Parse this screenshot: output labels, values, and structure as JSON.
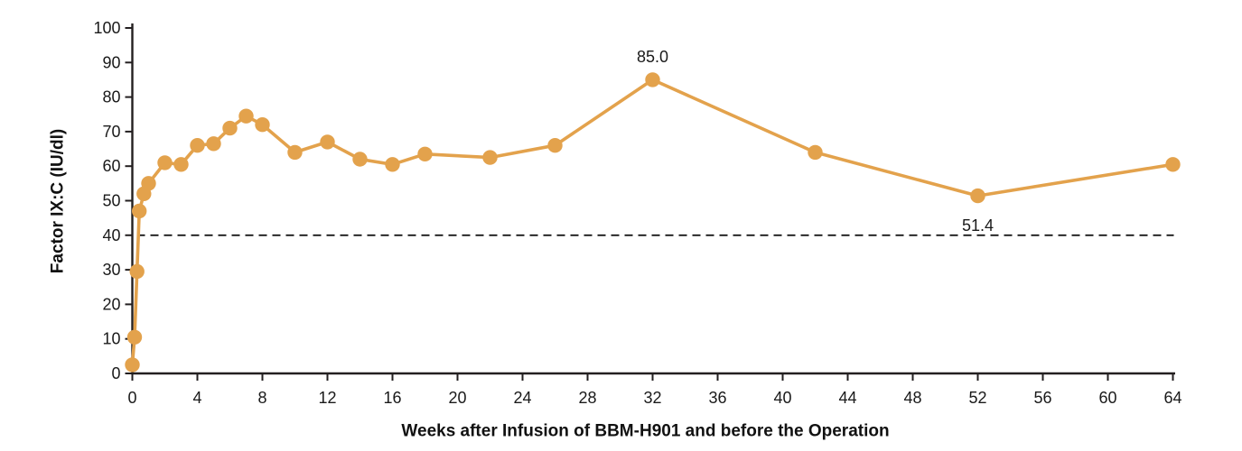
{
  "chart_data": {
    "type": "line",
    "title": "",
    "xlabel": "Weeks after Infusion of BBM-H901 and before the Operation",
    "ylabel": "Factor IX:C (IU/dl)",
    "x": [
      0,
      0.14,
      0.29,
      0.43,
      0.71,
      1,
      2,
      3,
      4,
      5,
      6,
      7,
      8,
      10,
      12,
      14,
      16,
      18,
      22,
      26,
      32,
      42,
      52,
      64
    ],
    "y": [
      2.5,
      10.5,
      29.5,
      47,
      52,
      55,
      61,
      60.5,
      66,
      66.5,
      71,
      74.5,
      72,
      64,
      67,
      62,
      60.5,
      63.5,
      62.5,
      66,
      85.0,
      64,
      51.4,
      60.5
    ],
    "xlim": [
      0,
      64
    ],
    "ylim": [
      0,
      100
    ],
    "x_ticks": [
      0,
      4,
      8,
      12,
      16,
      20,
      24,
      28,
      32,
      36,
      40,
      44,
      48,
      52,
      56,
      60,
      64
    ],
    "y_ticks": [
      0,
      10,
      20,
      30,
      40,
      50,
      60,
      70,
      80,
      90,
      100
    ],
    "grid": false,
    "legend": false,
    "reference_line": {
      "y": 40,
      "style": "dashed"
    },
    "annotations": [
      {
        "text": "85.0",
        "x": 32,
        "y": 85.0,
        "position": "above"
      },
      {
        "text": "51.4",
        "x": 52,
        "y": 51.4,
        "position": "below"
      }
    ],
    "colors": {
      "line": "#E3A24C",
      "marker": "#E3A24C",
      "axis": "#231F20",
      "text": "#1a1a1a",
      "reference_line": "#1a1a1a",
      "background": "#FFFFFF"
    }
  }
}
